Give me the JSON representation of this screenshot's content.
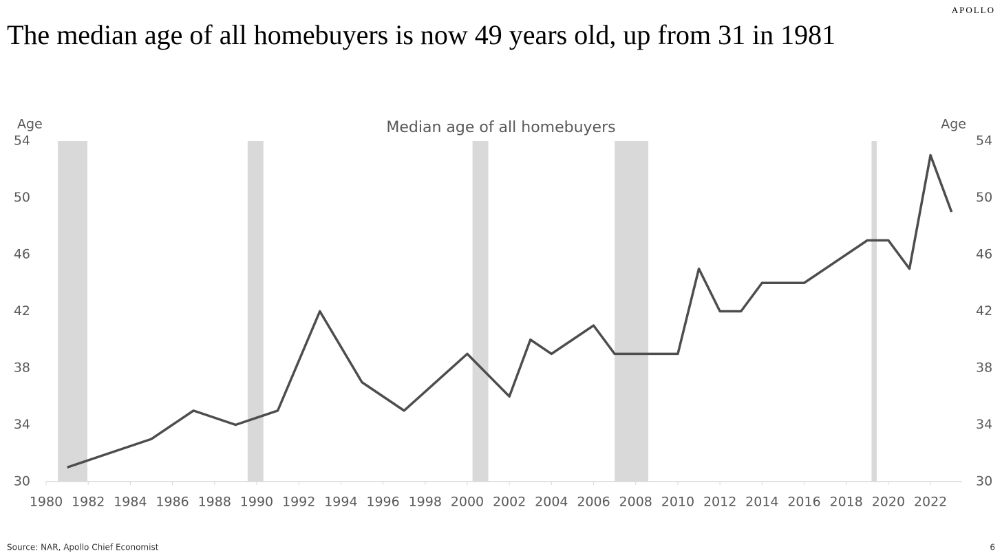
{
  "brand": "APOLLO",
  "source": "Source: NAR, Apollo Chief Economist",
  "page_number": "6",
  "chart_data": {
    "type": "line",
    "title": "The median age of all homebuyers is now 49 years old, up from 31 in 1981",
    "subtitle": "Median age of all homebuyers",
    "y_label": "Age",
    "y2_label": "Age",
    "x": [
      1981,
      1985,
      1987,
      1989,
      1991,
      1993,
      1995,
      1997,
      2000,
      2002,
      2003,
      2004,
      2006,
      2007,
      2010,
      2011,
      2012,
      2013,
      2014,
      2016,
      2019,
      2020,
      2021,
      2022,
      2023
    ],
    "series": [
      {
        "color": "#4d4d4d",
        "values": [
          31,
          33,
          35,
          34,
          35,
          42,
          37,
          35,
          39,
          36,
          40,
          39,
          41,
          39,
          39,
          45,
          42,
          42,
          44,
          44,
          47,
          47,
          45,
          53,
          49
        ]
      }
    ],
    "shaded_periods": [
      [
        1980.56,
        1981.96
      ],
      [
        1989.57,
        1990.32
      ],
      [
        2000.25,
        2001.0
      ],
      [
        2007.0,
        2008.6
      ],
      [
        2019.2,
        2019.45
      ]
    ],
    "shade_color": "#d9d9d9",
    "xlim": [
      1980,
      2023.5
    ],
    "xticks": [
      1980,
      1982,
      1984,
      1986,
      1988,
      1990,
      1992,
      1994,
      1996,
      1998,
      2000,
      2002,
      2004,
      2006,
      2008,
      2010,
      2012,
      2014,
      2016,
      2018,
      2020,
      2022
    ],
    "ylim": [
      30,
      54
    ],
    "yticks": [
      30,
      34,
      38,
      42,
      46,
      50,
      54
    ],
    "y2lim": [
      30,
      54
    ],
    "y2ticks": [
      30,
      34,
      38,
      42,
      46,
      50,
      54
    ],
    "grid": false
  }
}
